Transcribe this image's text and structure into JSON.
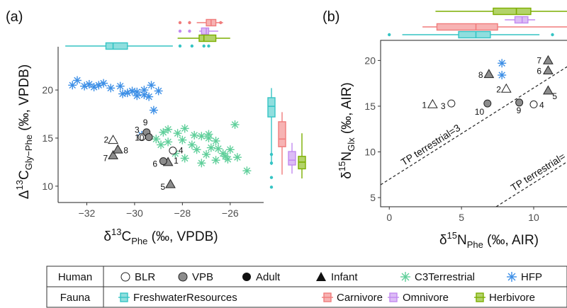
{
  "figure": {
    "colors": {
      "fresh": "#35c4c4",
      "fresh_fill": "#8fdede",
      "carn": "#f07c7c",
      "carn_fill": "#f7b3b3",
      "omni": "#c28af0",
      "omni_fill": "#dcbcf6",
      "herb": "#7cae00",
      "herb_fill": "#b3d36a",
      "c3": "#5fcf9a",
      "hfp": "#3d8fe6",
      "grey": "#8c8c8c"
    },
    "panels": [
      {
        "id": "a",
        "tag": "(a)",
        "xlabel": {
          "main": "δ",
          "sup": "13",
          "pre": "C",
          "sub": "Phe",
          "post": " (‰, VPDB)"
        },
        "ylabel": {
          "main": "Δ",
          "sup": "13",
          "pre": "C",
          "sub": "Gly−Phe",
          "post": " (‰, VPDB)"
        },
        "xticks": [
          -32,
          -30,
          -28,
          -26
        ],
        "yticks": [
          10,
          15,
          20
        ],
        "xlim": [
          -33.2,
          -24.6
        ],
        "ylim": [
          8.3,
          24.5
        ]
      },
      {
        "id": "b",
        "tag": "(b)",
        "xlabel": {
          "main": "δ",
          "sup": "15",
          "pre": "N",
          "sub": "Phe",
          "post": " (‰, AIR)"
        },
        "ylabel": {
          "main": "δ",
          "sup": "15",
          "pre": "N",
          "sub": "Glx",
          "post": " (‰, AIR)"
        },
        "xticks": [
          0,
          5,
          10
        ],
        "yticks": [
          5,
          10,
          15,
          20
        ],
        "xlim": [
          -0.6,
          12.6
        ],
        "ylim": [
          4.0,
          22.2
        ],
        "tp_lines": [
          {
            "label": "TP terrestrial=3",
            "intercept": 7.0,
            "slope": 1.0
          },
          {
            "label": "TP terrestrial=",
            "intercept": -3.4,
            "slope": 1.0
          }
        ]
      }
    ],
    "legend": {
      "row_labels": [
        "Human",
        "Fauna"
      ],
      "human_items": [
        "BLR",
        "VPB",
        "Adult",
        "Infant",
        "C3Terrestrial",
        "HFP"
      ],
      "fauna_items": [
        "FreshwaterResources",
        "Carnivore",
        "Omnivore",
        "Herbivore"
      ]
    }
  },
  "chart_data": [
    {
      "type": "scatter",
      "panel": "a",
      "xlabel": "δ13C Phe (‰, VPDB)",
      "ylabel": "Δ13C Gly−Phe (‰, VPDB)",
      "xlim": [
        -33.2,
        -24.6
      ],
      "ylim": [
        8.3,
        24.5
      ],
      "human": [
        {
          "label": "1",
          "x": -28.6,
          "y": 12.5,
          "site": "VPB",
          "age": "Infant"
        },
        {
          "label": "2",
          "x": -30.9,
          "y": 14.8,
          "site": "BLR",
          "age": "Infant"
        },
        {
          "label": "3",
          "x": -29.7,
          "y": 15.1,
          "site": "BLR",
          "age": "Adult"
        },
        {
          "label": "4",
          "x": -28.4,
          "y": 13.7,
          "site": "BLR",
          "age": "Adult"
        },
        {
          "label": "5",
          "x": -28.5,
          "y": 10.2,
          "site": "VPB",
          "age": "Infant"
        },
        {
          "label": "6",
          "x": -28.8,
          "y": 12.6,
          "site": "VPB",
          "age": "Adult"
        },
        {
          "label": "7",
          "x": -30.9,
          "y": 13.2,
          "site": "VPB",
          "age": "Infant"
        },
        {
          "label": "8",
          "x": -30.7,
          "y": 13.8,
          "site": "VPB",
          "age": "Infant"
        },
        {
          "label": "9",
          "x": -29.5,
          "y": 15.6,
          "site": "VPB",
          "age": "Adult"
        },
        {
          "label": "10",
          "x": -29.4,
          "y": 15.1,
          "site": "VPB",
          "age": "Adult"
        }
      ],
      "c3terrestrial": [
        [
          -28.6,
          15.9
        ],
        [
          -28.2,
          15.5
        ],
        [
          -27.9,
          16.0
        ],
        [
          -27.5,
          15.3
        ],
        [
          -28.0,
          14.8
        ],
        [
          -27.6,
          14.3
        ],
        [
          -27.2,
          15.2
        ],
        [
          -26.9,
          15.0
        ],
        [
          -26.6,
          14.7
        ],
        [
          -26.8,
          14.0
        ],
        [
          -26.5,
          13.9
        ],
        [
          -27.0,
          13.3
        ],
        [
          -26.3,
          13.4
        ],
        [
          -26.0,
          13.8
        ],
        [
          -26.2,
          13.1
        ],
        [
          -26.6,
          12.7
        ],
        [
          -27.2,
          12.4
        ],
        [
          -27.9,
          12.9
        ],
        [
          -28.3,
          13.4
        ],
        [
          -28.9,
          14.3
        ],
        [
          -29.1,
          14.9
        ],
        [
          -28.8,
          15.6
        ],
        [
          -25.8,
          16.4
        ],
        [
          -25.3,
          11.6
        ],
        [
          -25.7,
          13.0
        ],
        [
          -26.9,
          15.4
        ],
        [
          -26.1,
          12.8
        ],
        [
          -27.4,
          13.8
        ],
        [
          -28.6,
          14.6
        ]
      ],
      "hfp": [
        [
          -32.6,
          20.5
        ],
        [
          -32.4,
          21.0
        ],
        [
          -32.1,
          20.4
        ],
        [
          -31.9,
          20.6
        ],
        [
          -31.7,
          20.3
        ],
        [
          -31.3,
          20.7
        ],
        [
          -31.0,
          20.2
        ],
        [
          -30.6,
          20.4
        ],
        [
          -30.3,
          19.7
        ],
        [
          -30.1,
          19.9
        ],
        [
          -29.9,
          19.8
        ],
        [
          -29.6,
          19.5
        ],
        [
          -29.4,
          19.3
        ],
        [
          -29.3,
          20.5
        ],
        [
          -29.6,
          20.0
        ],
        [
          -29.9,
          19.4
        ],
        [
          -30.5,
          19.6
        ],
        [
          -29.0,
          19.9
        ],
        [
          -29.2,
          17.9
        ],
        [
          -29.7,
          15.3
        ],
        [
          -31.5,
          20.5
        ]
      ],
      "boxes_x": [
        {
          "group": "FreshwaterResources",
          "color": "fresh",
          "whisker": [
            -32.9,
            -28.4
          ],
          "q1": -31.2,
          "median": -30.9,
          "q3": -30.3,
          "outliers": [
            -28.1,
            -27.6,
            -27.1,
            -26.9
          ]
        },
        {
          "group": "Carnivore",
          "color": "carn",
          "whisker": [
            -27.4,
            -26.3
          ],
          "q1": -27.0,
          "median": -26.8,
          "q3": -26.6,
          "outliers": [
            -28.1,
            -27.7,
            -26.4
          ]
        },
        {
          "group": "Omnivore",
          "color": "omni",
          "whisker": [
            -27.3,
            -26.5
          ],
          "q1": -27.2,
          "median": -27.0,
          "q3": -26.9,
          "outliers": [
            -28.1,
            -27.7
          ]
        },
        {
          "group": "Herbivore",
          "color": "herb",
          "whisker": [
            -28.2,
            -26.0
          ],
          "q1": -27.3,
          "median": -27.1,
          "q3": -26.6,
          "outliers": []
        }
      ],
      "boxes_y": [
        {
          "group": "FreshwaterResources",
          "color": "fresh",
          "whisker": [
            12.2,
            20.2
          ],
          "q1": 17.2,
          "median": 18.3,
          "q3": 19.2,
          "outliers": [
            13.3,
            12.4,
            10.9,
            9.9
          ]
        },
        {
          "group": "Carnivore",
          "color": "carn",
          "whisker": [
            11.2,
            17.7
          ],
          "q1": 14.1,
          "median": 14.9,
          "q3": 16.7,
          "outliers": []
        },
        {
          "group": "Omnivore",
          "color": "omni",
          "whisker": [
            11.3,
            14.5
          ],
          "q1": 12.2,
          "median": 12.7,
          "q3": 13.6,
          "outliers": []
        },
        {
          "group": "Herbivore",
          "color": "herb",
          "whisker": [
            10.8,
            15.5
          ],
          "q1": 11.8,
          "median": 12.5,
          "q3": 13.1,
          "outliers": []
        }
      ]
    },
    {
      "type": "scatter",
      "panel": "b",
      "xlabel": "δ15N Phe (‰, AIR)",
      "ylabel": "δ15N Glx (‰, AIR)",
      "xlim": [
        -0.6,
        12.6
      ],
      "ylim": [
        4.0,
        22.2
      ],
      "human": [
        {
          "label": "1",
          "x": 3.0,
          "y": 15.2,
          "site": "BLR",
          "age": "Infant"
        },
        {
          "label": "2",
          "x": 8.1,
          "y": 16.9,
          "site": "BLR",
          "age": "Infant"
        },
        {
          "label": "3",
          "x": 4.3,
          "y": 15.3,
          "site": "BLR",
          "age": "Adult"
        },
        {
          "label": "4",
          "x": 10.0,
          "y": 15.2,
          "site": "BLR",
          "age": "Adult"
        },
        {
          "label": "5",
          "x": 11.0,
          "y": 16.7,
          "site": "VPB",
          "age": "Infant"
        },
        {
          "label": "6",
          "x": 11.0,
          "y": 18.9,
          "site": "VPB",
          "age": "Infant"
        },
        {
          "label": "7",
          "x": 11.0,
          "y": 20.0,
          "site": "VPB",
          "age": "Infant"
        },
        {
          "label": "8",
          "x": 6.9,
          "y": 18.5,
          "site": "VPB",
          "age": "Infant"
        },
        {
          "label": "9",
          "x": 9.0,
          "y": 15.4,
          "site": "VPB",
          "age": "Adult"
        },
        {
          "label": "10",
          "x": 6.8,
          "y": 15.3,
          "site": "VPB",
          "age": "Adult"
        }
      ],
      "hfp": [
        [
          7.8,
          19.7
        ],
        [
          7.8,
          18.4
        ]
      ],
      "boxes_x": [
        {
          "group": "Herbivore",
          "color": "herb",
          "whisker": [
            3.2,
            12.6
          ],
          "q1": 7.2,
          "median": 8.8,
          "q3": 9.8,
          "outliers": []
        },
        {
          "group": "Omnivore",
          "color": "omni",
          "whisker": [
            8.0,
            10.1
          ],
          "q1": 8.7,
          "median": 9.2,
          "q3": 9.6,
          "outliers": []
        },
        {
          "group": "Carnivore",
          "color": "carn",
          "whisker": [
            2.3,
            12.6
          ],
          "q1": 3.3,
          "median": 6.0,
          "q3": 7.5,
          "outliers": []
        },
        {
          "group": "FreshwaterResources",
          "color": "fresh",
          "whisker": [
            0.9,
            10.4
          ],
          "q1": 4.8,
          "median": 6.0,
          "q3": 7.0,
          "outliers": [
            0.0,
            11.3
          ]
        }
      ]
    }
  ]
}
